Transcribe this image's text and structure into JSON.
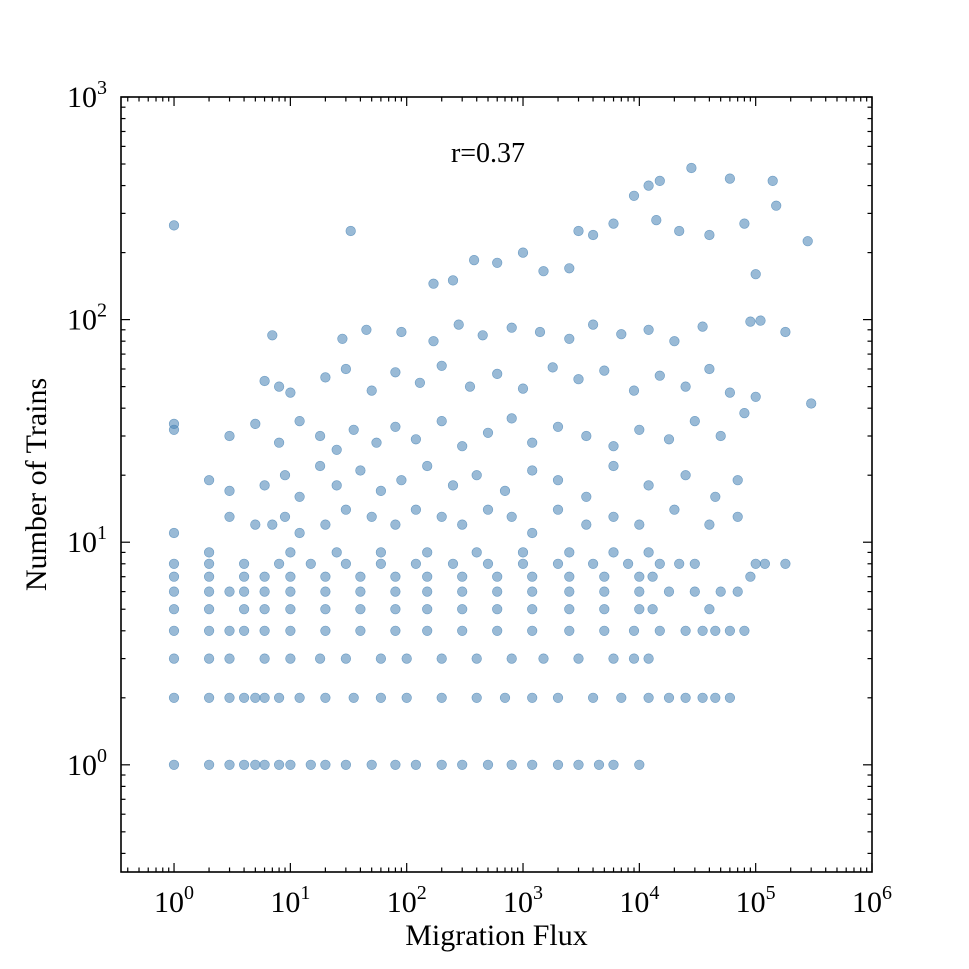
{
  "chart_data": {
    "type": "scatter",
    "title": "",
    "xlabel": "Migration Flux",
    "ylabel": "Number of Trains",
    "annotation": "r=0.37",
    "x_scale": "log",
    "y_scale": "log",
    "xlim": [
      0.35,
      1000000
    ],
    "ylim": [
      0.33,
      1000
    ],
    "x_ticks": [
      {
        "value": 1,
        "base": "10",
        "exp": "0"
      },
      {
        "value": 10,
        "base": "10",
        "exp": "1"
      },
      {
        "value": 100,
        "base": "10",
        "exp": "2"
      },
      {
        "value": 1000,
        "base": "10",
        "exp": "3"
      },
      {
        "value": 10000,
        "base": "10",
        "exp": "4"
      },
      {
        "value": 100000,
        "base": "10",
        "exp": "5"
      },
      {
        "value": 1000000,
        "base": "10",
        "exp": "6"
      }
    ],
    "y_ticks": [
      {
        "value": 1,
        "base": "10",
        "exp": "0"
      },
      {
        "value": 10,
        "base": "10",
        "exp": "1"
      },
      {
        "value": 100,
        "base": "10",
        "exp": "2"
      },
      {
        "value": 1000,
        "base": "10",
        "exp": "3"
      }
    ],
    "grid": false,
    "marker_color": "#4682B4",
    "marker_alpha": 0.55,
    "series": [
      {
        "points": [
          [
            1,
            1
          ],
          [
            2,
            1
          ],
          [
            3,
            1
          ],
          [
            4,
            1
          ],
          [
            5,
            1
          ],
          [
            6,
            1
          ],
          [
            8,
            1
          ],
          [
            10,
            1
          ],
          [
            15,
            1
          ],
          [
            20,
            1
          ],
          [
            30,
            1
          ],
          [
            50,
            1
          ],
          [
            80,
            1
          ],
          [
            120,
            1
          ],
          [
            200,
            1
          ],
          [
            300,
            1
          ],
          [
            500,
            1
          ],
          [
            800,
            1
          ],
          [
            1200,
            1
          ],
          [
            2000,
            1
          ],
          [
            3000,
            1
          ],
          [
            4500,
            1
          ],
          [
            6000,
            1
          ],
          [
            10000,
            1
          ],
          [
            1,
            2
          ],
          [
            2,
            2
          ],
          [
            3,
            2
          ],
          [
            4,
            2
          ],
          [
            5,
            2
          ],
          [
            6,
            2
          ],
          [
            8,
            2
          ],
          [
            12,
            2
          ],
          [
            20,
            2
          ],
          [
            35,
            2
          ],
          [
            60,
            2
          ],
          [
            100,
            2
          ],
          [
            200,
            2
          ],
          [
            400,
            2
          ],
          [
            700,
            2
          ],
          [
            1200,
            2
          ],
          [
            2000,
            2
          ],
          [
            4000,
            2
          ],
          [
            7000,
            2
          ],
          [
            12000,
            2
          ],
          [
            18000,
            2
          ],
          [
            25000,
            2
          ],
          [
            35000,
            2
          ],
          [
            45000,
            2
          ],
          [
            60000,
            2
          ],
          [
            1,
            3
          ],
          [
            2,
            3
          ],
          [
            3,
            3
          ],
          [
            6,
            3
          ],
          [
            10,
            3
          ],
          [
            18,
            3
          ],
          [
            30,
            3
          ],
          [
            60,
            3
          ],
          [
            100,
            3
          ],
          [
            200,
            3
          ],
          [
            400,
            3
          ],
          [
            800,
            3
          ],
          [
            1500,
            3
          ],
          [
            3000,
            3
          ],
          [
            6000,
            3
          ],
          [
            9000,
            3
          ],
          [
            12000,
            3
          ],
          [
            1,
            4
          ],
          [
            2,
            4
          ],
          [
            3,
            4
          ],
          [
            4,
            4
          ],
          [
            6,
            4
          ],
          [
            10,
            4
          ],
          [
            20,
            4
          ],
          [
            40,
            4
          ],
          [
            80,
            4
          ],
          [
            150,
            4
          ],
          [
            300,
            4
          ],
          [
            600,
            4
          ],
          [
            1200,
            4
          ],
          [
            2500,
            4
          ],
          [
            5000,
            4
          ],
          [
            9000,
            4
          ],
          [
            15000,
            4
          ],
          [
            25000,
            4
          ],
          [
            35000,
            4
          ],
          [
            45000,
            4
          ],
          [
            60000,
            4
          ],
          [
            80000,
            4
          ],
          [
            1,
            5
          ],
          [
            2,
            5
          ],
          [
            4,
            5
          ],
          [
            6,
            5
          ],
          [
            10,
            5
          ],
          [
            20,
            5
          ],
          [
            40,
            5
          ],
          [
            80,
            5
          ],
          [
            150,
            5
          ],
          [
            300,
            5
          ],
          [
            600,
            5
          ],
          [
            1200,
            5
          ],
          [
            2500,
            5
          ],
          [
            5000,
            5
          ],
          [
            10000,
            5
          ],
          [
            13000,
            5
          ],
          [
            40000,
            5
          ],
          [
            1,
            6
          ],
          [
            2,
            6
          ],
          [
            3,
            6
          ],
          [
            4,
            6
          ],
          [
            6,
            6
          ],
          [
            10,
            6
          ],
          [
            20,
            6
          ],
          [
            40,
            6
          ],
          [
            80,
            6
          ],
          [
            150,
            6
          ],
          [
            300,
            6
          ],
          [
            600,
            6
          ],
          [
            1200,
            6
          ],
          [
            2500,
            6
          ],
          [
            5000,
            6
          ],
          [
            10000,
            6
          ],
          [
            18000,
            6
          ],
          [
            30000,
            6
          ],
          [
            50000,
            6
          ],
          [
            70000,
            6
          ],
          [
            1,
            7
          ],
          [
            2,
            7
          ],
          [
            4,
            7
          ],
          [
            6,
            7
          ],
          [
            10,
            7
          ],
          [
            20,
            7
          ],
          [
            40,
            7
          ],
          [
            80,
            7
          ],
          [
            150,
            7
          ],
          [
            300,
            7
          ],
          [
            600,
            7
          ],
          [
            1200,
            7
          ],
          [
            2500,
            7
          ],
          [
            5000,
            7
          ],
          [
            10000,
            7
          ],
          [
            13000,
            7
          ],
          [
            90000,
            7
          ],
          [
            1,
            8
          ],
          [
            2,
            8
          ],
          [
            4,
            8
          ],
          [
            8,
            8
          ],
          [
            15,
            8
          ],
          [
            30,
            8
          ],
          [
            60,
            8
          ],
          [
            120,
            8
          ],
          [
            250,
            8
          ],
          [
            500,
            8
          ],
          [
            1000,
            8
          ],
          [
            2000,
            8
          ],
          [
            4000,
            8
          ],
          [
            8000,
            8
          ],
          [
            15000,
            8
          ],
          [
            22000,
            8
          ],
          [
            30000,
            8
          ],
          [
            100000,
            8
          ],
          [
            120000,
            8
          ],
          [
            180000,
            8
          ],
          [
            2,
            9
          ],
          [
            10,
            9
          ],
          [
            25,
            9
          ],
          [
            60,
            9
          ],
          [
            150,
            9
          ],
          [
            400,
            9
          ],
          [
            1000,
            9
          ],
          [
            2500,
            9
          ],
          [
            6000,
            9
          ],
          [
            12000,
            9
          ],
          [
            1,
            11
          ],
          [
            3,
            13
          ],
          [
            5,
            12
          ],
          [
            7,
            12
          ],
          [
            9,
            13
          ],
          [
            12,
            11
          ],
          [
            20,
            12
          ],
          [
            30,
            14
          ],
          [
            50,
            13
          ],
          [
            80,
            12
          ],
          [
            120,
            14
          ],
          [
            200,
            13
          ],
          [
            300,
            12
          ],
          [
            500,
            14
          ],
          [
            800,
            13
          ],
          [
            1200,
            11
          ],
          [
            2000,
            14
          ],
          [
            3500,
            12
          ],
          [
            6000,
            13
          ],
          [
            10000,
            12
          ],
          [
            20000,
            14
          ],
          [
            40000,
            12
          ],
          [
            70000,
            13
          ],
          [
            2,
            19
          ],
          [
            3,
            17
          ],
          [
            6,
            18
          ],
          [
            9,
            20
          ],
          [
            12,
            16
          ],
          [
            18,
            22
          ],
          [
            25,
            18
          ],
          [
            40,
            21
          ],
          [
            60,
            17
          ],
          [
            90,
            19
          ],
          [
            150,
            22
          ],
          [
            250,
            18
          ],
          [
            400,
            20
          ],
          [
            700,
            17
          ],
          [
            1200,
            21
          ],
          [
            2000,
            19
          ],
          [
            3500,
            16
          ],
          [
            6000,
            22
          ],
          [
            12000,
            18
          ],
          [
            25000,
            20
          ],
          [
            45000,
            16
          ],
          [
            70000,
            19
          ],
          [
            1,
            32
          ],
          [
            1,
            34
          ],
          [
            3,
            30
          ],
          [
            5,
            34
          ],
          [
            8,
            28
          ],
          [
            12,
            35
          ],
          [
            18,
            30
          ],
          [
            25,
            26
          ],
          [
            35,
            32
          ],
          [
            55,
            28
          ],
          [
            80,
            33
          ],
          [
            120,
            29
          ],
          [
            200,
            35
          ],
          [
            300,
            27
          ],
          [
            500,
            31
          ],
          [
            800,
            36
          ],
          [
            1200,
            28
          ],
          [
            2000,
            33
          ],
          [
            3500,
            30
          ],
          [
            6000,
            27
          ],
          [
            10000,
            32
          ],
          [
            18000,
            29
          ],
          [
            30000,
            35
          ],
          [
            50000,
            30
          ],
          [
            80000,
            38
          ],
          [
            100000,
            45
          ],
          [
            300000,
            42
          ],
          [
            6,
            53
          ],
          [
            8,
            50
          ],
          [
            10,
            47
          ],
          [
            20,
            55
          ],
          [
            30,
            60
          ],
          [
            50,
            48
          ],
          [
            80,
            58
          ],
          [
            130,
            52
          ],
          [
            200,
            62
          ],
          [
            350,
            50
          ],
          [
            600,
            57
          ],
          [
            1000,
            49
          ],
          [
            1800,
            61
          ],
          [
            3000,
            54
          ],
          [
            5000,
            59
          ],
          [
            9000,
            48
          ],
          [
            15000,
            56
          ],
          [
            25000,
            50
          ],
          [
            40000,
            60
          ],
          [
            60000,
            47
          ],
          [
            7,
            85
          ],
          [
            28,
            82
          ],
          [
            45,
            90
          ],
          [
            90,
            88
          ],
          [
            170,
            80
          ],
          [
            280,
            95
          ],
          [
            450,
            85
          ],
          [
            800,
            92
          ],
          [
            1400,
            88
          ],
          [
            2500,
            82
          ],
          [
            4000,
            95
          ],
          [
            7000,
            86
          ],
          [
            12000,
            90
          ],
          [
            20000,
            80
          ],
          [
            35000,
            93
          ],
          [
            90000,
            98
          ],
          [
            110000,
            99
          ],
          [
            180000,
            88
          ],
          [
            1,
            265
          ],
          [
            33,
            250
          ],
          [
            170,
            145
          ],
          [
            250,
            150
          ],
          [
            380,
            185
          ],
          [
            600,
            180
          ],
          [
            1000,
            200
          ],
          [
            1500,
            165
          ],
          [
            2500,
            170
          ],
          [
            3000,
            250
          ],
          [
            4000,
            240
          ],
          [
            6000,
            270
          ],
          [
            9000,
            360
          ],
          [
            12000,
            400
          ],
          [
            15000,
            420
          ],
          [
            28000,
            480
          ],
          [
            60000,
            430
          ],
          [
            80000,
            270
          ],
          [
            140000,
            420
          ],
          [
            280000,
            225
          ],
          [
            14000,
            280
          ],
          [
            22000,
            250
          ],
          [
            40000,
            240
          ],
          [
            100000,
            160
          ],
          [
            150000,
            325
          ]
        ]
      }
    ]
  }
}
